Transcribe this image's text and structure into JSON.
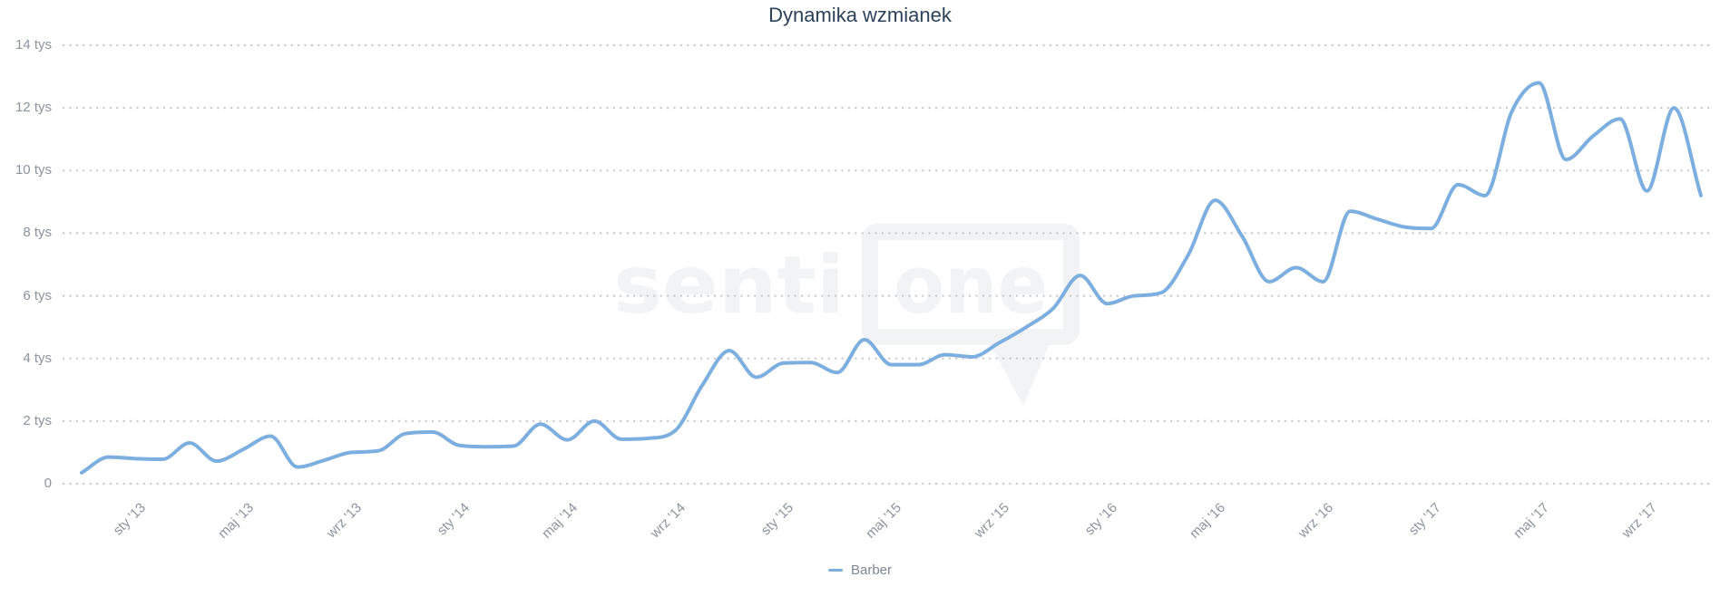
{
  "page": {
    "background": "#ffffff"
  },
  "chart_data": {
    "type": "line",
    "title": "Dynamika wzmianek",
    "xlabel": "",
    "ylabel": "",
    "ylim": [
      0,
      14000
    ],
    "y_tick_step": 2000,
    "grid": "horizontal-dotted",
    "legend_position": "bottom-center",
    "x": [
      "lis '12",
      "gru '12",
      "sty '13",
      "lut '13",
      "mar '13",
      "kwi '13",
      "maj '13",
      "cze '13",
      "lip '13",
      "sie '13",
      "wrz '13",
      "paź '13",
      "lis '13",
      "gru '13",
      "sty '14",
      "lut '14",
      "mar '14",
      "kwi '14",
      "maj '14",
      "cze '14",
      "lip '14",
      "sie '14",
      "wrz '14",
      "paź '14",
      "lis '14",
      "gru '14",
      "sty '15",
      "lut '15",
      "mar '15",
      "kwi '15",
      "maj '15",
      "cze '15",
      "lip '15",
      "sie '15",
      "wrz '15",
      "paź '15",
      "lis '15",
      "gru '15",
      "sty '16",
      "lut '16",
      "mar '16",
      "kwi '16",
      "maj '16",
      "cze '16",
      "lip '16",
      "sie '16",
      "wrz '16",
      "paź '16",
      "lis '16",
      "gru '16",
      "sty '17",
      "lut '17",
      "mar '17",
      "kwi '17",
      "maj '17",
      "cze '17",
      "lip '17",
      "sie '17",
      "wrz '17",
      "paź '17",
      "lis '17"
    ],
    "series": [
      {
        "name": "Barber",
        "color": "#7cafe0",
        "values": [
          350,
          850,
          800,
          780,
          1300,
          720,
          1100,
          1520,
          530,
          750,
          1000,
          1050,
          1600,
          1650,
          1220,
          1180,
          1200,
          1900,
          1400,
          2000,
          1420,
          1450,
          1700,
          3150,
          4250,
          3400,
          3850,
          3870,
          3550,
          4600,
          3800,
          3800,
          4120,
          4050,
          4500,
          5000,
          5600,
          6650,
          5750,
          6000,
          6100,
          7300,
          9050,
          7900,
          6450,
          6900,
          6450,
          8700,
          8450,
          8200,
          8150,
          9550,
          9200,
          11900,
          12800,
          10350,
          11100,
          11650,
          9350,
          12000,
          9200
        ]
      }
    ]
  },
  "axes": {
    "y_ticks": [
      {
        "label": "14 tys",
        "value": 14000
      },
      {
        "label": "12 tys",
        "value": 12000
      },
      {
        "label": "10 tys",
        "value": 10000
      },
      {
        "label": "8 tys",
        "value": 8000
      },
      {
        "label": "6 tys",
        "value": 6000
      },
      {
        "label": "4 tys",
        "value": 4000
      },
      {
        "label": "2 tys",
        "value": 2000
      },
      {
        "label": "0",
        "value": 0
      }
    ],
    "x_ticks": [
      {
        "label": "sty '13",
        "month_index": 2
      },
      {
        "label": "maj '13",
        "month_index": 6
      },
      {
        "label": "wrz '13",
        "month_index": 10
      },
      {
        "label": "sty '14",
        "month_index": 14
      },
      {
        "label": "maj '14",
        "month_index": 18
      },
      {
        "label": "wrz '14",
        "month_index": 22
      },
      {
        "label": "sty '15",
        "month_index": 26
      },
      {
        "label": "maj '15",
        "month_index": 30
      },
      {
        "label": "wrz '15",
        "month_index": 34
      },
      {
        "label": "sty '16",
        "month_index": 38
      },
      {
        "label": "maj '16",
        "month_index": 42
      },
      {
        "label": "wrz '16",
        "month_index": 46
      },
      {
        "label": "sty '17",
        "month_index": 50
      },
      {
        "label": "maj '17",
        "month_index": 54
      },
      {
        "label": "wrz '17",
        "month_index": 58
      }
    ]
  },
  "legend": {
    "items": [
      {
        "label": "Barber"
      }
    ]
  },
  "watermark": {
    "part1": "senti",
    "part2": "one"
  },
  "colors": {
    "line": "#7cafe0",
    "grid_dots": "#c6c9cc",
    "title_text": "#2c4257",
    "axis_label_text": "#8d939d",
    "legend_text": "#7e8792",
    "watermark": "#f2f3f5",
    "background": "#ffffff"
  }
}
